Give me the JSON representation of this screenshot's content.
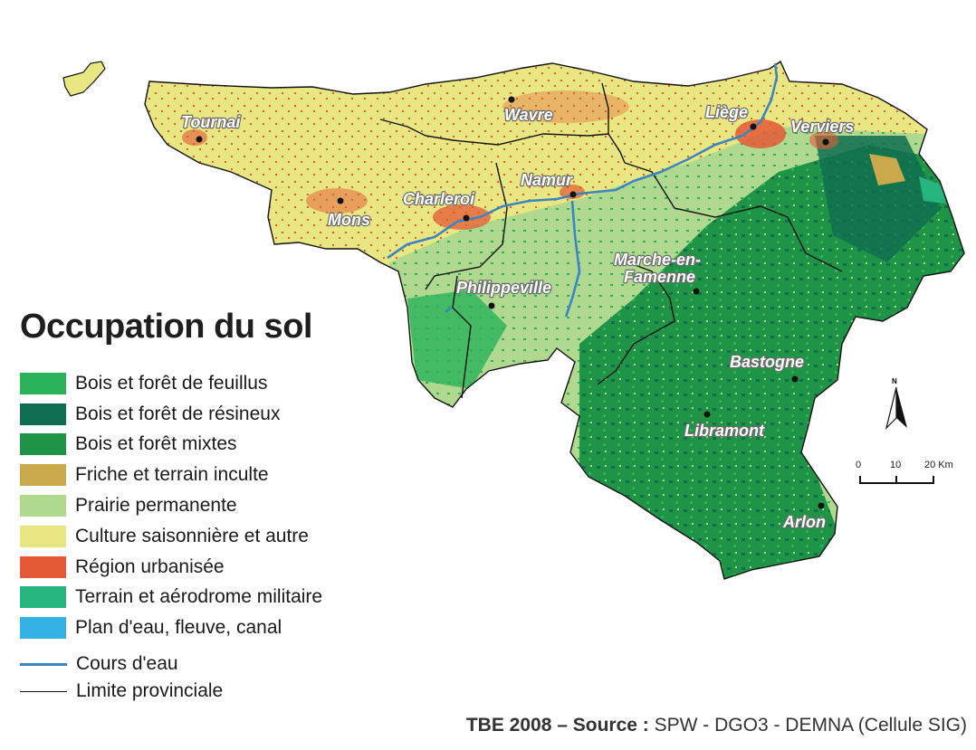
{
  "colors": {
    "feuillus": "#2ab35a",
    "resineux": "#0f6e50",
    "mixtes": "#1f9446",
    "friche": "#c9a94b",
    "prairie": "#b0d88e",
    "culture": "#e8e782",
    "urbain": "#e45936",
    "militaire": "#27b57f",
    "eau": "#34b2e6",
    "cours_eau": "#3a86c4",
    "limite": "#111111"
  },
  "cities": [
    {
      "name": "Tournai",
      "key": "tournai"
    },
    {
      "name": "Wavre",
      "key": "wavre"
    },
    {
      "name": "Liège",
      "key": "liege"
    },
    {
      "name": "Verviers",
      "key": "verviers"
    },
    {
      "name": "Namur",
      "key": "namur"
    },
    {
      "name": "Charleroi",
      "key": "charleroi"
    },
    {
      "name": "Mons",
      "key": "mons"
    },
    {
      "name": "Marche-en-",
      "key": "marche1"
    },
    {
      "name": "Famenne",
      "key": "marche2"
    },
    {
      "name": "Philippeville",
      "key": "philippeville"
    },
    {
      "name": "Bastogne",
      "key": "bastogne"
    },
    {
      "name": "Libramont",
      "key": "libramont"
    },
    {
      "name": "Arlon",
      "key": "arlon"
    }
  ],
  "legend": {
    "title": "Occupation du sol",
    "items": [
      {
        "label": "Bois et forêt de feuillus",
        "color": "#2ab35a"
      },
      {
        "label": "Bois et forêt de résineux",
        "color": "#0f6e50"
      },
      {
        "label": "Bois et forêt mixtes",
        "color": "#1f9446"
      },
      {
        "label": "Friche et terrain inculte",
        "color": "#c9a94b"
      },
      {
        "label": "Prairie permanente",
        "color": "#b0d88e"
      },
      {
        "label": "Culture saisonnière et autre",
        "color": "#e8e782"
      },
      {
        "label": "Région urbanisée",
        "color": "#e45936"
      },
      {
        "label": "Terrain et aérodrome militaire",
        "color": "#27b57f"
      },
      {
        "label": "Plan d'eau, fleuve, canal",
        "color": "#34b2e6"
      }
    ],
    "lines": [
      {
        "label": "Cours d'eau",
        "color": "#3a86c4"
      },
      {
        "label": "Limite provinciale",
        "color": "#111111"
      }
    ]
  },
  "scale": {
    "ticks": [
      "0",
      "10",
      "20 Km"
    ]
  },
  "north": {
    "label": "N"
  },
  "source": {
    "prefix": "TBE 2008 – ",
    "bold": "Source :",
    "text": " SPW - DGO3 - DEMNA (Cellule SIG)"
  }
}
